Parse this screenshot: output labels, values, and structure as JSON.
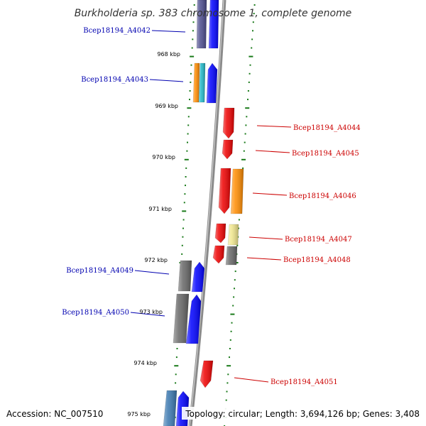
{
  "title": "Burkholderia sp. 383 chromosome 1, complete genome",
  "accession_text": "Accession: NC_007510",
  "topology_text": "Topology: circular; Length: 3,694,126 bp; Genes: 3,408",
  "colors": {
    "backbone": "#8a8a8a",
    "ruler_dots": "#1a7a1a",
    "label_forward": "#0000b0",
    "label_reverse": "#cc0000",
    "navy": "#4a4a8c",
    "blue": "#0000ff",
    "orange": "#ff8c00",
    "cyan": "#20b8c8",
    "red": "#ee0000",
    "yellow": "#f0e68c",
    "gray": "#666666",
    "steelblue": "#3a78b0"
  },
  "tick_labels": [
    "968 kbp",
    "969 kbp",
    "970 kbp",
    "971 kbp",
    "972 kbp",
    "973 kbp",
    "974 kbp",
    "975 kbp"
  ],
  "gene_labels": [
    {
      "text": "Bcep18194_A4042",
      "strand": "forward"
    },
    {
      "text": "Bcep18194_A4043",
      "strand": "forward"
    },
    {
      "text": "Bcep18194_A4044",
      "strand": "reverse"
    },
    {
      "text": "Bcep18194_A4045",
      "strand": "reverse"
    },
    {
      "text": "Bcep18194_A4046",
      "strand": "reverse"
    },
    {
      "text": "Bcep18194_A4047",
      "strand": "reverse"
    },
    {
      "text": "Bcep18194_A4048",
      "strand": "reverse"
    },
    {
      "text": "Bcep18194_A4049",
      "strand": "forward"
    },
    {
      "text": "Bcep18194_A4050",
      "strand": "forward"
    },
    {
      "text": "Bcep18194_A4051",
      "strand": "reverse"
    }
  ]
}
